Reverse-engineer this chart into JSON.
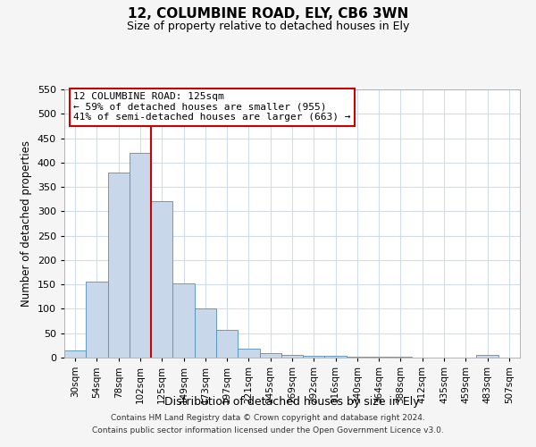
{
  "title1": "12, COLUMBINE ROAD, ELY, CB6 3WN",
  "title2": "Size of property relative to detached houses in Ely",
  "xlabel": "Distribution of detached houses by size in Ely",
  "ylabel": "Number of detached properties",
  "footer_line1": "Contains HM Land Registry data © Crown copyright and database right 2024.",
  "footer_line2": "Contains public sector information licensed under the Open Government Licence v3.0.",
  "bar_labels": [
    "30sqm",
    "54sqm",
    "78sqm",
    "102sqm",
    "125sqm",
    "149sqm",
    "173sqm",
    "197sqm",
    "221sqm",
    "245sqm",
    "269sqm",
    "292sqm",
    "316sqm",
    "340sqm",
    "364sqm",
    "388sqm",
    "412sqm",
    "435sqm",
    "459sqm",
    "483sqm",
    "507sqm"
  ],
  "bar_values": [
    14,
    155,
    380,
    420,
    320,
    152,
    100,
    57,
    19,
    10,
    5,
    3,
    3,
    1,
    1,
    1,
    0,
    0,
    0,
    5,
    0
  ],
  "bar_color": "#c8d8ea",
  "bar_edge_color": "#5090bb",
  "vline_index": 4,
  "annotation_line1": "12 COLUMBINE ROAD: 125sqm",
  "annotation_line2": "← 59% of detached houses are smaller (955)",
  "annotation_line3": "41% of semi-detached houses are larger (663) →",
  "vline_color": "#cc0000",
  "ylim_max": 550,
  "yticks": [
    0,
    50,
    100,
    150,
    200,
    250,
    300,
    350,
    400,
    450,
    500,
    550
  ],
  "fig_bg_color": "#f5f5f5",
  "plot_bg_color": "#ffffff",
  "grid_color": "#d0dde8"
}
